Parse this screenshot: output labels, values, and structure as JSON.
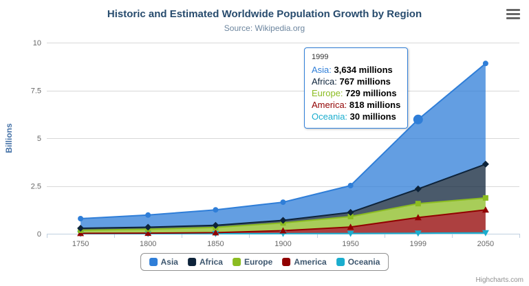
{
  "header": {
    "title": "Historic and Estimated Worldwide Population Growth by Region",
    "subtitle": "Source: Wikipedia.org"
  },
  "chart_data": {
    "type": "area",
    "stacking": "normal",
    "title": "Historic and Estimated Worldwide Population Growth by Region",
    "subtitle": "Source: Wikipedia.org",
    "categories": [
      "1750",
      "1800",
      "1850",
      "1900",
      "1950",
      "1999",
      "2050"
    ],
    "series": [
      {
        "name": "Asia",
        "color": "#2f7ed8",
        "marker": "circle",
        "values": [
          502,
          635,
          809,
          947,
          1402,
          3634,
          5268
        ]
      },
      {
        "name": "Africa",
        "color": "#0d233a",
        "marker": "diamond",
        "values": [
          106,
          107,
          111,
          133,
          221,
          767,
          1766
        ]
      },
      {
        "name": "Europe",
        "color": "#8bbc21",
        "marker": "square",
        "values": [
          163,
          203,
          276,
          408,
          547,
          729,
          628
        ]
      },
      {
        "name": "America",
        "color": "#910000",
        "marker": "triangle",
        "values": [
          18,
          31,
          54,
          156,
          339,
          818,
          1201
        ]
      },
      {
        "name": "Oceania",
        "color": "#1aadce",
        "marker": "triangle-down",
        "values": [
          2,
          2,
          2,
          6,
          13,
          30,
          46
        ]
      }
    ],
    "values_unit": "millions",
    "ylabel": "Billions",
    "yticks": [
      0,
      2.5,
      5,
      7.5,
      10
    ],
    "ylim": [
      0,
      10
    ],
    "grid": true,
    "legend_position": "bottom",
    "highlighted_point": {
      "series": "Asia",
      "category": "1999"
    }
  },
  "tooltip": {
    "header": "1999",
    "border_color": "#2f7ed8",
    "rows": [
      {
        "label": "Asia",
        "value": "3,634 millions",
        "color": "#2f7ed8"
      },
      {
        "label": "Africa",
        "value": "767 millions",
        "color": "#0d233a"
      },
      {
        "label": "Europe",
        "value": "729 millions",
        "color": "#8bbc21"
      },
      {
        "label": "America",
        "value": "818 millions",
        "color": "#910000"
      },
      {
        "label": "Oceania",
        "value": "30 millions",
        "color": "#1aadce"
      }
    ]
  },
  "credits": "Highcharts.com"
}
